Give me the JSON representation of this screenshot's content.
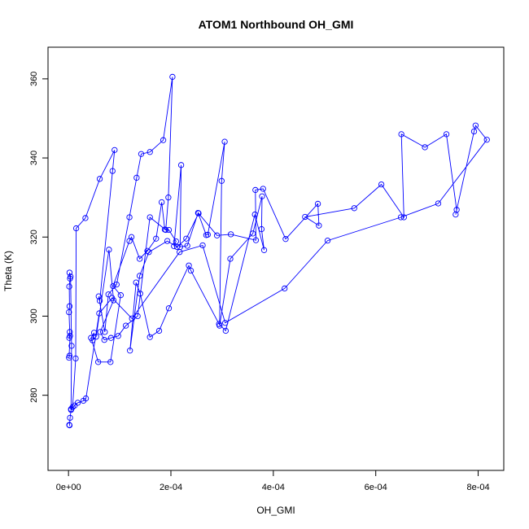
{
  "chart_data": {
    "type": "line",
    "title": "ATOM1 Northbound OH_GMI",
    "xlabel": "OH_GMI",
    "ylabel": "Theta (K)",
    "xlim": [
      -4e-05,
      0.00085
    ],
    "ylim": [
      261,
      368
    ],
    "xticks": [
      0,
      0.0002,
      0.0004,
      0.0006,
      0.0008
    ],
    "xtick_labels": [
      "0e+00",
      "2e-04",
      "4e-04",
      "6e-04",
      "8e-04"
    ],
    "yticks": [
      280,
      300,
      320,
      340,
      360
    ],
    "ytick_labels": [
      "280",
      "300",
      "320",
      "340",
      "360"
    ],
    "grid": false,
    "marker": "open-circle",
    "series": [
      {
        "color": "#0000ff",
        "x": [
          2e-06,
          1e-06,
          3e-06,
          1.5e-06,
          2.5e-06,
          1e-06,
          2e-06,
          1.5e-06,
          3e-06,
          2e-06,
          4e-06,
          6e-06,
          5e-06,
          8e-06,
          1.4e-05,
          1.5e-05,
          3.3e-05,
          6.1e-05,
          9e-05,
          8.6e-05,
          6.1e-05,
          5.9e-05,
          7.1e-05,
          7.8e-05,
          9.4e-05,
          0.000119,
          0.000133,
          0.000142,
          0.000159,
          0.000185,
          0.000203,
          0.000195,
          0.00019,
          0.000159,
          0.000135,
          0.000112,
          9.7e-05,
          8.3e-05,
          7e-05,
          6.2e-05,
          8.8e-05,
          7.9e-05,
          5.4e-05,
          4.7e-05,
          5e-05,
          4.4e-05,
          5.8e-05,
          8.2e-05,
          0.000102,
          8.7e-05,
          0.000119,
          0.000123,
          0.000139,
          0.000154,
          0.000171,
          0.000182,
          0.000188,
          0.000196,
          0.00021,
          0.000206,
          0.00022,
          0.000218,
          0.000232,
          0.000253,
          0.000269,
          0.000272,
          0.000305,
          0.000299,
          0.000295,
          0.000316,
          0.00036,
          0.000378,
          0.000377,
          0.000382,
          0.000364,
          0.000307,
          0.000294,
          0.000239,
          0.000235,
          0.000196,
          0.000177,
          0.000159,
          0.00014,
          0.000132,
          0.00012,
          0.000139,
          0.000157,
          0.000193,
          0.000212,
          0.00023,
          0.000254,
          0.00029,
          0.000317,
          0.000366,
          0.000365,
          0.00038,
          0.000424,
          0.000487,
          0.000489,
          0.000462,
          0.000558,
          0.000611,
          0.000655,
          0.00065,
          0.000696,
          0.000738,
          0.000758,
          0.000756,
          0.000792,
          0.000795,
          0.000817,
          0.000722,
          0.000649,
          0.000506,
          0.000422,
          0.000306,
          0.000262,
          0.000217,
          0.000124,
          8.5e-05,
          6e-05,
          3.4e-05,
          2.9e-05,
          1.8e-05,
          1.2e-05,
          5e-06,
          3e-06,
          2e-06,
          1.5e-06
        ],
        "y": [
          290.0,
          289.5,
          295.0,
          294.5,
          296.0,
          301.0,
          302.5,
          307.5,
          309.5,
          311.0,
          310.0,
          292.5,
          276.5,
          277.0,
          289.3,
          322.2,
          324.8,
          334.7,
          342.0,
          336.7,
          303.9,
          305.0,
          296.0,
          305.5,
          308.0,
          325.0,
          335.0,
          341.0,
          341.5,
          344.5,
          360.5,
          330.0,
          321.8,
          325.0,
          300.0,
          297.6,
          295.0,
          294.5,
          294.0,
          296.0,
          304.0,
          316.8,
          294.8,
          293.9,
          295.8,
          294.5,
          288.4,
          288.4,
          305.3,
          307.6,
          319.0,
          320.0,
          314.5,
          316.5,
          319.6,
          328.8,
          321.9,
          321.8,
          318.9,
          317.7,
          338.2,
          317.5,
          317.8,
          326.1,
          320.5,
          320.6,
          344.1,
          334.2,
          297.6,
          314.5,
          320.9,
          330.3,
          322.0,
          316.7,
          325.7,
          296.3,
          298.0,
          311.5,
          312.8,
          302.0,
          296.3,
          294.7,
          305.7,
          308.5,
          291.3,
          310.2,
          316.2,
          319.0,
          317.5,
          319.6,
          326.0,
          320.4,
          320.7,
          319.2,
          331.9,
          332.2,
          319.5,
          328.4,
          322.9,
          325.1,
          327.3,
          333.3,
          325.0,
          346.0,
          342.7,
          346.0,
          326.9,
          325.7,
          346.7,
          348.2,
          344.6,
          328.5,
          325.0,
          319.1,
          307.0,
          298.3,
          317.9,
          316.2,
          299.4,
          304.6,
          300.7,
          279.2,
          278.6,
          278.1,
          277.4,
          276.3,
          274.3,
          272.4,
          272.5
        ]
      }
    ]
  }
}
